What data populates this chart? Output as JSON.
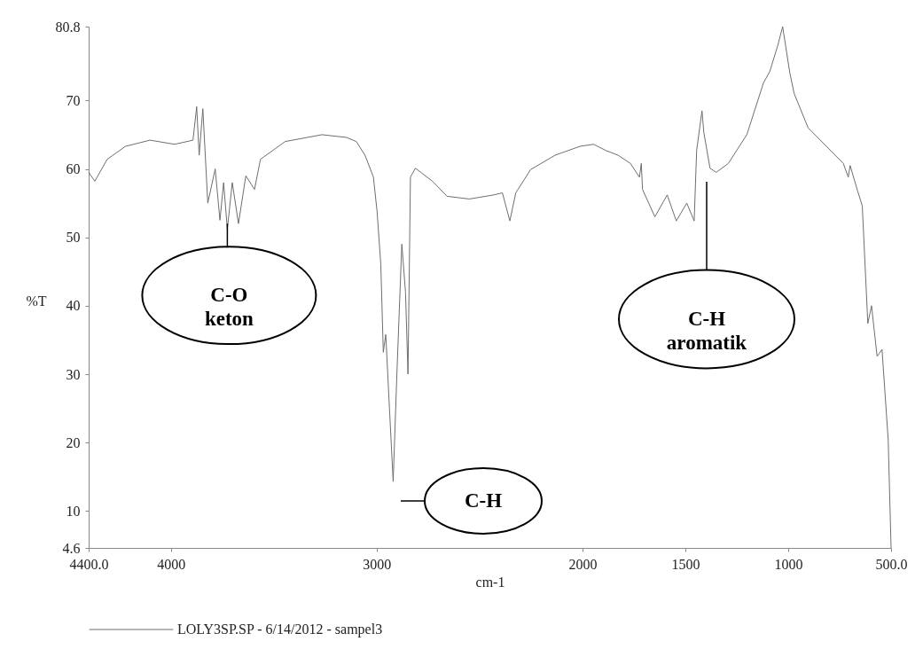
{
  "chart_data": {
    "type": "line",
    "xlabel": "cm-1",
    "ylabel": "%T",
    "xlim": [
      4400,
      500
    ],
    "ylim": [
      4.6,
      80.8
    ],
    "xticks": [
      {
        "value": 4400,
        "label": "4400.0"
      },
      4000,
      3000,
      2000,
      1500,
      1000,
      {
        "value": 500,
        "label": "500.0"
      }
    ],
    "yticks": [
      4.6,
      10,
      20,
      30,
      40,
      50,
      60,
      70,
      80.8
    ],
    "grid": false,
    "legend": "bottom left",
    "marker": "none",
    "line_style": "solid",
    "series": [
      {
        "name": "LOLY3SP.SP - 6/14/2012 - sampel3",
        "color": "#6e6e6e",
        "x": [
          4400,
          4370,
          4310,
          4221,
          4102,
          3982,
          3893,
          3875,
          3863,
          3845,
          3821,
          3785,
          3762,
          3744,
          3726,
          3702,
          3672,
          3636,
          3594,
          3565,
          3445,
          3266,
          3147,
          3099,
          3057,
          3016,
          2998,
          2980,
          2968,
          2956,
          2938,
          2920,
          2902,
          2878,
          2860,
          2848,
          2836,
          2812,
          2729,
          2658,
          2550,
          2431,
          2389,
          2353,
          2324,
          2252,
          2133,
          2012,
          1946,
          1887,
          1827,
          1767,
          1723,
          1714,
          1708,
          1648,
          1588,
          1544,
          1493,
          1457,
          1445,
          1419,
          1410,
          1380,
          1350,
          1291,
          1201,
          1120,
          1090,
          1051,
          1027,
          992,
          971,
          903,
          732,
          708,
          699,
          664,
          640,
          613,
          595,
          568,
          544,
          514,
          500
        ],
        "values": [
          59.5,
          58.2,
          61.4,
          63.3,
          64.2,
          63.6,
          64.2,
          69.1,
          62,
          68.8,
          55,
          60,
          52.5,
          58,
          51.2,
          58,
          52,
          59,
          57,
          61.4,
          64,
          65,
          64.6,
          64,
          62,
          58.8,
          53.7,
          46,
          33.2,
          35.8,
          25,
          14.3,
          30,
          49,
          42,
          30,
          58.8,
          60.1,
          58.2,
          56,
          55.6,
          56.2,
          56.5,
          52.4,
          56.5,
          59.9,
          62,
          63.3,
          63.6,
          62.7,
          62,
          60.8,
          58.8,
          60.8,
          57,
          53,
          56.2,
          52.4,
          55,
          52.4,
          62.7,
          68.5,
          65.3,
          60.1,
          59.5,
          60.8,
          65,
          72.6,
          74.2,
          78,
          80.8,
          74,
          71,
          66,
          60.8,
          58.8,
          60.5,
          56.9,
          54.6,
          37.4,
          40,
          32.6,
          33.6,
          20.4,
          4.6
        ]
      }
    ],
    "annotations": [
      {
        "text": "C-O keton",
        "x": 3726,
        "y": 52
      },
      "C-H",
      "C-H aromatik"
    ]
  }
}
